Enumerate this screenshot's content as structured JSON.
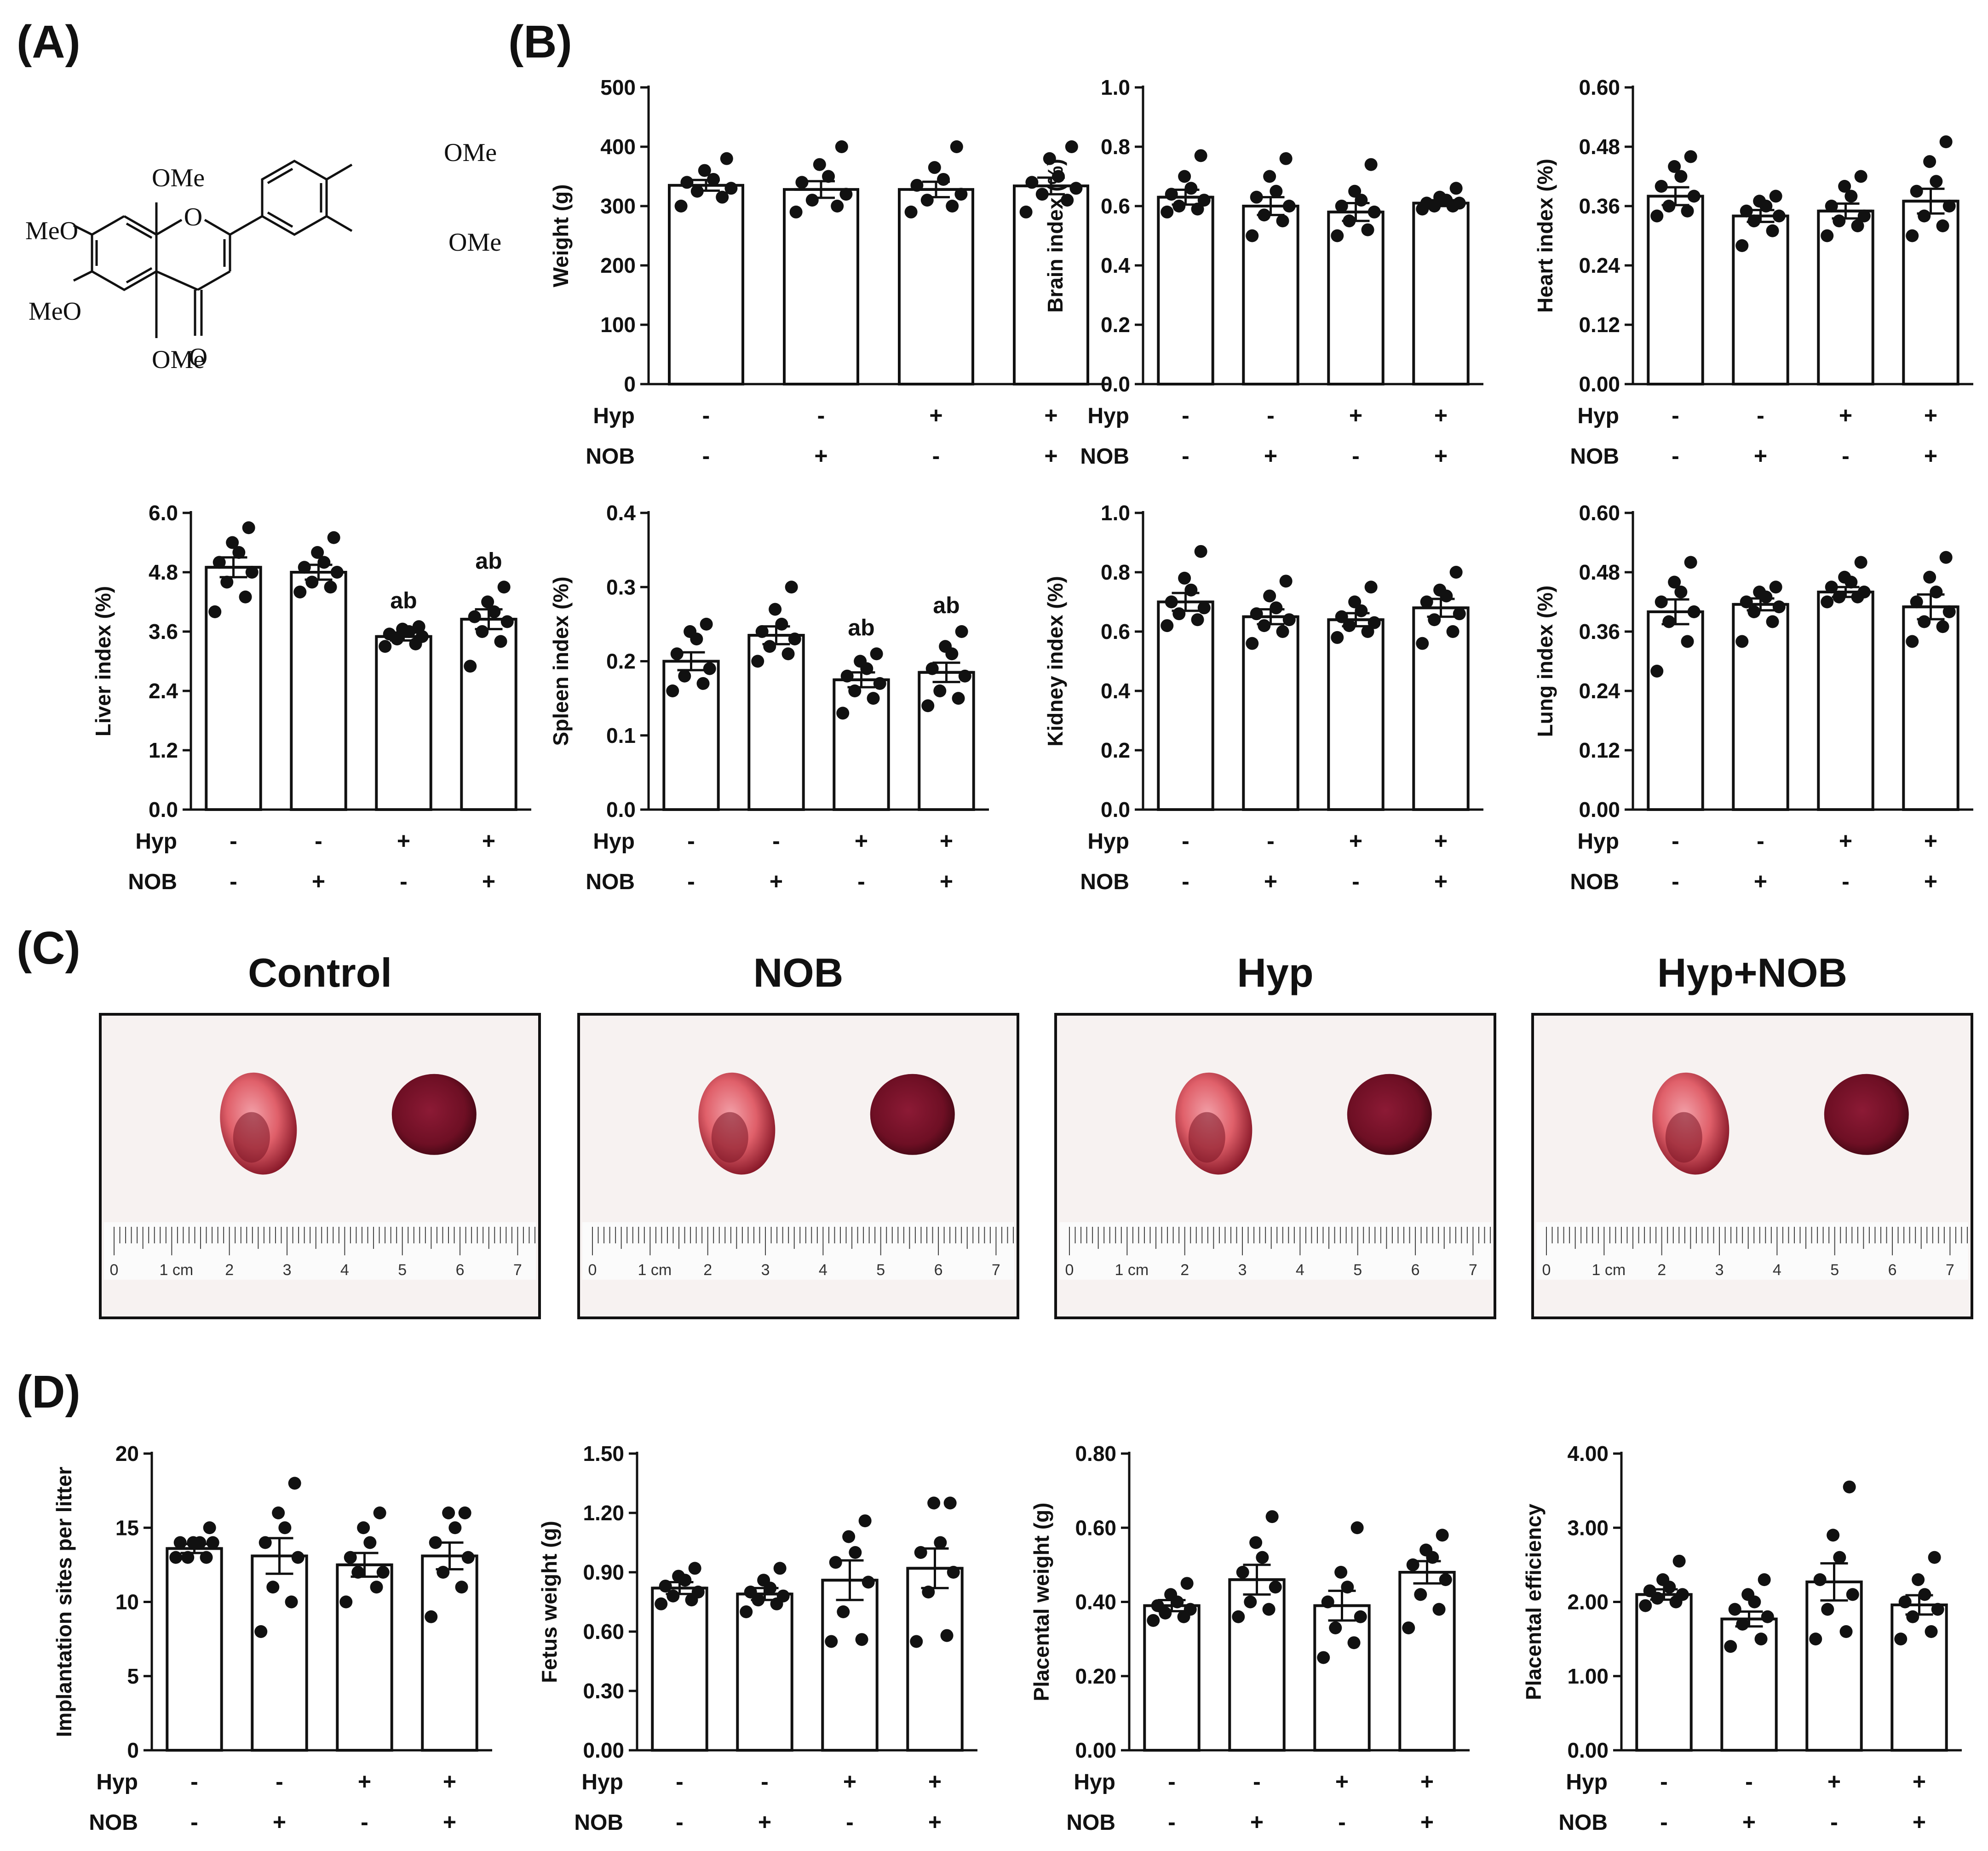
{
  "panel_labels": {
    "a": "(A)",
    "b": "(B)",
    "c": "(C)",
    "d": "(D)"
  },
  "chemical_structure": {
    "substituents": [
      "OMe",
      "MeO",
      "MeO",
      "OMe",
      "OMe",
      "OMe"
    ],
    "ring_oxygen": "O",
    "carbonyl_oxygen": "O"
  },
  "factor_labels": {
    "hyp": "Hyp",
    "nob": "NOB"
  },
  "signs": {
    "hyp": [
      "-",
      "-",
      "+",
      "+"
    ],
    "nob": [
      "-",
      "+",
      "-",
      "+"
    ]
  },
  "photo_panel": {
    "groups": [
      "Control",
      "NOB",
      "Hyp",
      "Hyp+NOB"
    ],
    "ruler_numbers": [
      "0",
      "1 cm",
      "2",
      "3",
      "4",
      "5",
      "6",
      "7"
    ],
    "colors": {
      "tissue_light": "#e0606a",
      "tissue_dark": "#6e0f24",
      "background": "#f7f2f1"
    }
  },
  "chart_data": [
    {
      "id": "weight",
      "panel": "B",
      "type": "bar",
      "ylabel": "Weight (g)",
      "ylim": [
        0,
        500
      ],
      "yticks": [
        "0",
        "100",
        "200",
        "300",
        "400",
        "500"
      ],
      "categories": [
        "Control",
        "NOB",
        "Hyp",
        "Hyp+NOB"
      ],
      "means": [
        335,
        328,
        328,
        334
      ],
      "sem": [
        9,
        14,
        13,
        14
      ],
      "points": [
        [
          300,
          315,
          325,
          330,
          340,
          345,
          360,
          380
        ],
        [
          290,
          300,
          310,
          320,
          340,
          350,
          370,
          400
        ],
        [
          290,
          300,
          310,
          320,
          335,
          345,
          365,
          400
        ],
        [
          290,
          310,
          320,
          330,
          340,
          350,
          380,
          400
        ]
      ],
      "sig": [
        "",
        "",
        "",
        ""
      ]
    },
    {
      "id": "brain",
      "panel": "B",
      "type": "bar",
      "ylabel": "Brain index (%)",
      "ylim": [
        0,
        1.0
      ],
      "yticks": [
        "0.0",
        "0.2",
        "0.4",
        "0.6",
        "0.8",
        "1.0"
      ],
      "categories": [
        "Control",
        "NOB",
        "Hyp",
        "Hyp+NOB"
      ],
      "means": [
        0.63,
        0.6,
        0.58,
        0.61
      ],
      "sem": [
        0.025,
        0.03,
        0.03,
        0.01
      ],
      "points": [
        [
          0.58,
          0.59,
          0.6,
          0.62,
          0.64,
          0.66,
          0.7,
          0.77
        ],
        [
          0.5,
          0.55,
          0.57,
          0.6,
          0.63,
          0.65,
          0.7,
          0.76
        ],
        [
          0.5,
          0.52,
          0.55,
          0.58,
          0.6,
          0.62,
          0.65,
          0.74
        ],
        [
          0.59,
          0.6,
          0.6,
          0.61,
          0.61,
          0.62,
          0.63,
          0.66
        ]
      ],
      "sig": [
        "",
        "",
        "",
        ""
      ]
    },
    {
      "id": "heart",
      "panel": "B",
      "type": "bar",
      "ylabel": "Heart index (%)",
      "ylim": [
        0,
        0.6
      ],
      "yticks": [
        "0.00",
        "0.12",
        "0.24",
        "0.36",
        "0.48",
        "0.60"
      ],
      "categories": [
        "Control",
        "NOB",
        "Hyp",
        "Hyp+NOB"
      ],
      "means": [
        0.38,
        0.34,
        0.35,
        0.37
      ],
      "sem": [
        0.018,
        0.012,
        0.015,
        0.025
      ],
      "points": [
        [
          0.34,
          0.35,
          0.36,
          0.38,
          0.4,
          0.42,
          0.44,
          0.46
        ],
        [
          0.28,
          0.31,
          0.33,
          0.34,
          0.35,
          0.36,
          0.37,
          0.38
        ],
        [
          0.3,
          0.32,
          0.33,
          0.34,
          0.36,
          0.38,
          0.4,
          0.42
        ],
        [
          0.3,
          0.32,
          0.34,
          0.36,
          0.39,
          0.41,
          0.45,
          0.49
        ]
      ],
      "sig": [
        "",
        "",
        "",
        ""
      ]
    },
    {
      "id": "liver",
      "panel": "B",
      "type": "bar",
      "ylabel": "Liver index (%)",
      "ylim": [
        0,
        6.0
      ],
      "yticks": [
        "0.0",
        "1.2",
        "2.4",
        "3.6",
        "4.8",
        "6.0"
      ],
      "categories": [
        "Control",
        "NOB",
        "Hyp",
        "Hyp+NOB"
      ],
      "means": [
        4.9,
        4.8,
        3.5,
        3.85
      ],
      "sem": [
        0.2,
        0.15,
        0.08,
        0.2
      ],
      "points": [
        [
          4.0,
          4.3,
          4.6,
          4.8,
          5.0,
          5.2,
          5.4,
          5.7
        ],
        [
          4.4,
          4.5,
          4.6,
          4.8,
          4.9,
          5.0,
          5.2,
          5.5
        ],
        [
          3.3,
          3.35,
          3.45,
          3.5,
          3.55,
          3.6,
          3.65,
          3.7
        ],
        [
          2.9,
          3.4,
          3.6,
          3.8,
          3.9,
          4.0,
          4.2,
          4.5
        ]
      ],
      "sig": [
        "",
        "",
        "ab",
        "ab"
      ]
    },
    {
      "id": "spleen",
      "panel": "B",
      "type": "bar",
      "ylabel": "Spleen index (%)",
      "ylim": [
        0,
        0.4
      ],
      "yticks": [
        "0.0",
        "0.1",
        "0.2",
        "0.3",
        "0.4"
      ],
      "categories": [
        "Control",
        "NOB",
        "Hyp",
        "Hyp+NOB"
      ],
      "means": [
        0.2,
        0.235,
        0.175,
        0.185
      ],
      "sem": [
        0.012,
        0.012,
        0.01,
        0.013
      ],
      "points": [
        [
          0.16,
          0.17,
          0.18,
          0.19,
          0.21,
          0.23,
          0.24,
          0.25
        ],
        [
          0.2,
          0.21,
          0.22,
          0.23,
          0.24,
          0.25,
          0.27,
          0.3
        ],
        [
          0.13,
          0.15,
          0.16,
          0.17,
          0.18,
          0.19,
          0.2,
          0.21
        ],
        [
          0.14,
          0.15,
          0.16,
          0.18,
          0.19,
          0.21,
          0.22,
          0.24
        ]
      ],
      "sig": [
        "",
        "",
        "ab",
        "ab"
      ]
    },
    {
      "id": "kidney",
      "panel": "B",
      "type": "bar",
      "ylabel": "Kidney index (%)",
      "ylim": [
        0,
        1.0
      ],
      "yticks": [
        "0.0",
        "0.2",
        "0.4",
        "0.6",
        "0.8",
        "1.0"
      ],
      "categories": [
        "Control",
        "NOB",
        "Hyp",
        "Hyp+NOB"
      ],
      "means": [
        0.7,
        0.65,
        0.64,
        0.68
      ],
      "sem": [
        0.03,
        0.025,
        0.022,
        0.03
      ],
      "points": [
        [
          0.62,
          0.64,
          0.66,
          0.68,
          0.7,
          0.74,
          0.78,
          0.87
        ],
        [
          0.56,
          0.6,
          0.62,
          0.64,
          0.66,
          0.68,
          0.72,
          0.77
        ],
        [
          0.58,
          0.6,
          0.62,
          0.63,
          0.65,
          0.67,
          0.7,
          0.75
        ],
        [
          0.56,
          0.6,
          0.64,
          0.66,
          0.7,
          0.72,
          0.74,
          0.8
        ]
      ],
      "sig": [
        "",
        "",
        "",
        ""
      ]
    },
    {
      "id": "lung",
      "panel": "B",
      "type": "bar",
      "ylabel": "Lung index (%)",
      "ylim": [
        0,
        0.6
      ],
      "yticks": [
        "0.00",
        "0.12",
        "0.24",
        "0.36",
        "0.48",
        "0.60"
      ],
      "categories": [
        "Control",
        "NOB",
        "Hyp",
        "Hyp+NOB"
      ],
      "means": [
        0.4,
        0.415,
        0.44,
        0.41
      ],
      "sem": [
        0.025,
        0.012,
        0.01,
        0.025
      ],
      "points": [
        [
          0.28,
          0.34,
          0.38,
          0.4,
          0.42,
          0.44,
          0.46,
          0.5
        ],
        [
          0.34,
          0.38,
          0.4,
          0.41,
          0.42,
          0.43,
          0.44,
          0.45
        ],
        [
          0.42,
          0.43,
          0.43,
          0.44,
          0.45,
          0.46,
          0.47,
          0.5
        ],
        [
          0.34,
          0.37,
          0.38,
          0.4,
          0.42,
          0.44,
          0.47,
          0.51
        ]
      ],
      "sig": [
        "",
        "",
        "",
        ""
      ]
    },
    {
      "id": "implantation",
      "panel": "D",
      "type": "bar",
      "ylabel": "Implantation sites per litter",
      "ylim": [
        0,
        20
      ],
      "yticks": [
        "0",
        "5",
        "10",
        "15",
        "20"
      ],
      "categories": [
        "Control",
        "NOB",
        "Hyp",
        "Hyp+NOB"
      ],
      "means": [
        13.6,
        13.1,
        12.5,
        13.1
      ],
      "sem": [
        0.3,
        1.2,
        0.8,
        0.9
      ],
      "points": [
        [
          13,
          13,
          13,
          14,
          14,
          14,
          14,
          15
        ],
        [
          8,
          10,
          11,
          13,
          14,
          15,
          16,
          18
        ],
        [
          10,
          11,
          12,
          12,
          13,
          14,
          15,
          16
        ],
        [
          9,
          11,
          12,
          13,
          14,
          15,
          16,
          16
        ]
      ],
      "sig": [
        "",
        "",
        "",
        ""
      ]
    },
    {
      "id": "fetus",
      "panel": "D",
      "type": "bar",
      "ylabel": "Fetus weight (g)",
      "ylim": [
        0,
        1.5
      ],
      "yticks": [
        "0.00",
        "0.30",
        "0.60",
        "0.90",
        "1.20",
        "1.50"
      ],
      "categories": [
        "Control",
        "NOB",
        "Hyp",
        "Hyp+NOB"
      ],
      "means": [
        0.82,
        0.79,
        0.86,
        0.92
      ],
      "sem": [
        0.03,
        0.03,
        0.1,
        0.1
      ],
      "points": [
        [
          0.74,
          0.76,
          0.78,
          0.8,
          0.83,
          0.86,
          0.88,
          0.92
        ],
        [
          0.7,
          0.74,
          0.76,
          0.78,
          0.8,
          0.82,
          0.86,
          0.92
        ],
        [
          0.55,
          0.56,
          0.7,
          0.85,
          0.95,
          1.0,
          1.08,
          1.16
        ],
        [
          0.55,
          0.58,
          0.8,
          0.9,
          1.0,
          1.05,
          1.25,
          1.25
        ]
      ],
      "sig": [
        "",
        "",
        "",
        ""
      ]
    },
    {
      "id": "placental_weight",
      "panel": "D",
      "type": "bar",
      "ylabel": "Placental weight (g)",
      "ylim": [
        0,
        0.8
      ],
      "yticks": [
        "0.00",
        "0.20",
        "0.40",
        "0.60",
        "0.80"
      ],
      "categories": [
        "Control",
        "NOB",
        "Hyp",
        "Hyp+NOB"
      ],
      "means": [
        0.39,
        0.46,
        0.39,
        0.48
      ],
      "sem": [
        0.015,
        0.04,
        0.04,
        0.03
      ],
      "points": [
        [
          0.35,
          0.36,
          0.37,
          0.38,
          0.39,
          0.4,
          0.42,
          0.45
        ],
        [
          0.36,
          0.38,
          0.4,
          0.44,
          0.48,
          0.52,
          0.56,
          0.63
        ],
        [
          0.25,
          0.29,
          0.33,
          0.36,
          0.4,
          0.44,
          0.48,
          0.6
        ],
        [
          0.33,
          0.38,
          0.42,
          0.46,
          0.5,
          0.52,
          0.54,
          0.58
        ]
      ],
      "sig": [
        "",
        "",
        "",
        ""
      ]
    },
    {
      "id": "placental_efficiency",
      "panel": "D",
      "type": "bar",
      "ylabel": "Placental efficiency",
      "ylim": [
        0,
        4.0
      ],
      "yticks": [
        "0.00",
        "1.00",
        "2.00",
        "3.00",
        "4.00"
      ],
      "categories": [
        "Control",
        "NOB",
        "Hyp",
        "Hyp+NOB"
      ],
      "means": [
        2.1,
        1.77,
        2.27,
        1.96
      ],
      "sem": [
        0.07,
        0.1,
        0.25,
        0.13
      ],
      "points": [
        [
          1.95,
          2.0,
          2.05,
          2.1,
          2.15,
          2.2,
          2.3,
          2.55
        ],
        [
          1.4,
          1.5,
          1.7,
          1.8,
          1.9,
          2.0,
          2.1,
          2.3
        ],
        [
          1.5,
          1.6,
          1.9,
          2.1,
          2.3,
          2.6,
          2.9,
          3.55
        ],
        [
          1.5,
          1.6,
          1.8,
          1.9,
          2.0,
          2.1,
          2.3,
          2.6
        ]
      ],
      "sig": [
        "",
        "",
        "",
        ""
      ]
    }
  ]
}
